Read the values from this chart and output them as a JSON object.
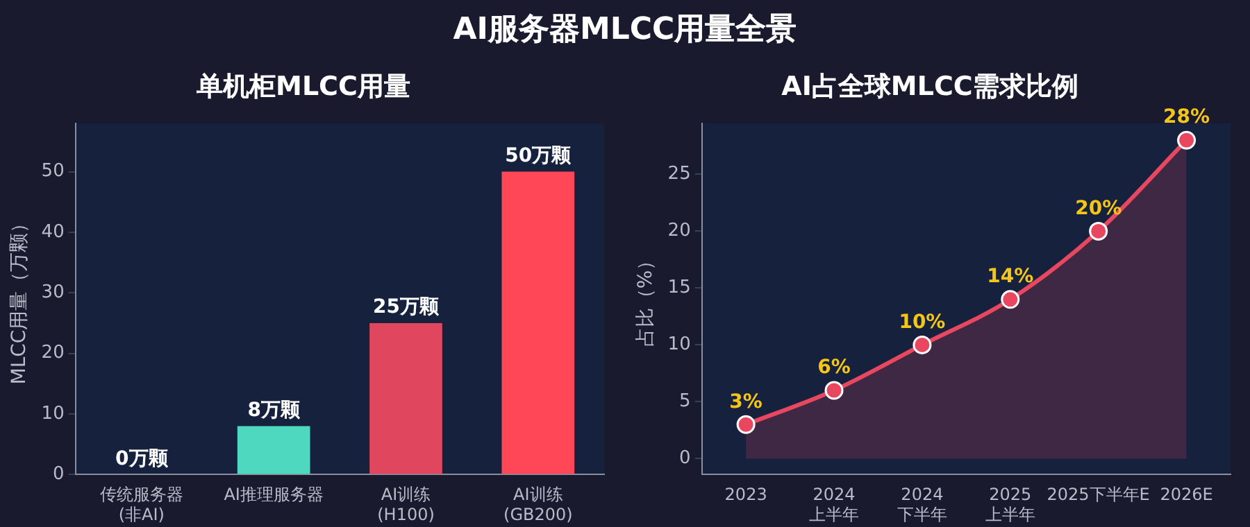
{
  "chart_data": [
    {
      "type": "other",
      "title": "AI服务器MLCC用量全景"
    },
    {
      "type": "bar",
      "title": "单机柜MLCC用量",
      "ylabel": "MLCC用量（万颗）",
      "categories": [
        "传统服务器\n(非AI)",
        "AI推理服务器",
        "AI训练\n(H100)",
        "AI训练\n(GB200)"
      ],
      "values": [
        0,
        8,
        25,
        50
      ],
      "colors": [
        "#3a6ea5",
        "#4fd8c0",
        "#e0475f",
        "#ff4757"
      ],
      "value_labels": [
        "0万颗",
        "8万颗",
        "25万颗",
        "50万颗"
      ],
      "ylim": [
        0,
        58
      ],
      "yticks": [
        0,
        10,
        20,
        30,
        40,
        50
      ]
    },
    {
      "type": "area",
      "title": "AI占全球MLCC需求比例",
      "ylabel": "占比（%）",
      "categories": [
        "2023",
        "2024\n上半年",
        "2024\n下半年",
        "2025\n上半年",
        "2025下半年E",
        "2026E"
      ],
      "series": [
        {
          "color": "#e8475f",
          "values": [
            3,
            6,
            10,
            14,
            20,
            28
          ]
        }
      ],
      "value_labels": [
        "3%",
        "6%",
        "10%",
        "14%",
        "20%",
        "28%"
      ],
      "marker": "circle",
      "ylim": [
        -1.4,
        29.5
      ],
      "yticks": [
        0,
        5,
        10,
        15,
        20,
        25
      ]
    }
  ]
}
